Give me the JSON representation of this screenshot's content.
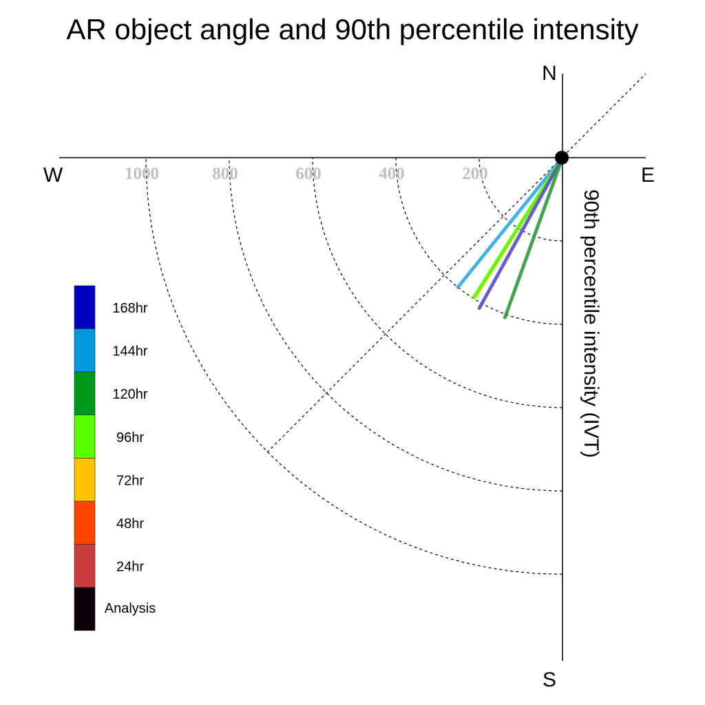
{
  "chart_data": {
    "type": "polar-vector",
    "title": "AR object angle and 90th percentile intensity",
    "ylabel": "90th percentile intensity (IVT)",
    "compass": {
      "north": "N",
      "south": "S",
      "east": "E",
      "west": "W"
    },
    "rings": [
      200,
      400,
      600,
      800,
      1000
    ],
    "ring_labels": [
      "1000",
      "800",
      "600",
      "400",
      "200"
    ],
    "rlim": [
      0,
      1000
    ],
    "legend": {
      "placement": "left",
      "items": [
        {
          "label": "168hr",
          "color": "#0000c0"
        },
        {
          "label": "144hr",
          "color": "#0099dd"
        },
        {
          "label": "120hr",
          "color": "#009a1a"
        },
        {
          "label": "96hr",
          "color": "#55ff00"
        },
        {
          "label": "72hr",
          "color": "#ffc200"
        },
        {
          "label": "48hr",
          "color": "#ff4400"
        },
        {
          "label": "24hr",
          "color": "#cc3c3c"
        },
        {
          "label": "Analysis",
          "color": "#0d0008"
        }
      ]
    },
    "series": [
      {
        "name": "144hr",
        "angle_deg": 218.9,
        "intensity": 400,
        "color": "#33a9e0"
      },
      {
        "name": "72hr",
        "angle_deg": 212.1,
        "intensity": 396,
        "color": "#ffc200"
      },
      {
        "name": "96hr",
        "angle_deg": 212.4,
        "intensity": 397,
        "color": "#55ff00"
      },
      {
        "name": "168hr",
        "angle_deg": 208.9,
        "intensity": 413,
        "color": "#5a4cc8"
      },
      {
        "name": "120hr",
        "angle_deg": 199.8,
        "intensity": 408,
        "color": "#2f9a3c"
      }
    ]
  }
}
